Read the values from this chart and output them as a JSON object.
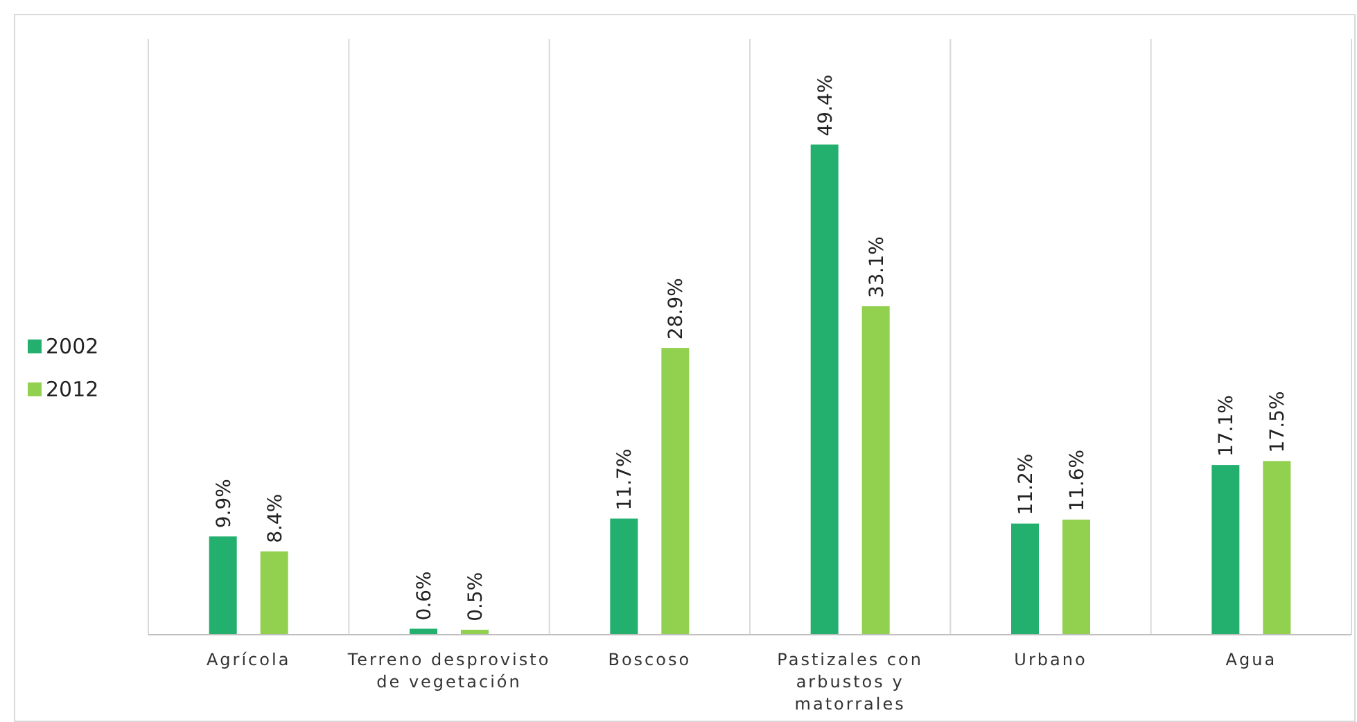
{
  "chart_data": {
    "type": "bar",
    "categories": [
      "Agrícola",
      "Terreno desprovisto de vegetación",
      "Boscoso",
      "Pastizales con arbustos y matorrales",
      "Urbano",
      "Agua"
    ],
    "series": [
      {
        "name": "2002",
        "color": "#23b06f",
        "values": [
          9.9,
          0.6,
          11.7,
          49.4,
          11.2,
          17.1
        ],
        "value_labels": [
          "9.9%",
          "0.6%",
          "11.7%",
          "49.4%",
          "11.2%",
          "17.1%"
        ]
      },
      {
        "name": "2012",
        "color": "#92d050",
        "values": [
          8.4,
          0.5,
          28.9,
          33.1,
          11.6,
          17.5
        ],
        "value_labels": [
          "8.4%",
          "0.5%",
          "28.9%",
          "33.1%",
          "11.6%",
          "17.5%"
        ]
      }
    ],
    "grid": "x",
    "legend": "left"
  }
}
